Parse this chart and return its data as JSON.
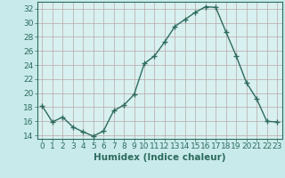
{
  "x": [
    0,
    1,
    2,
    3,
    4,
    5,
    6,
    7,
    8,
    9,
    10,
    11,
    12,
    13,
    14,
    15,
    16,
    17,
    18,
    19,
    20,
    21,
    22,
    23
  ],
  "y": [
    18.2,
    15.9,
    16.6,
    15.2,
    14.5,
    13.9,
    14.6,
    17.5,
    18.3,
    19.8,
    24.2,
    25.3,
    27.3,
    29.5,
    30.5,
    31.5,
    32.3,
    32.2,
    28.7,
    25.3,
    21.5,
    19.2,
    16.0,
    15.9
  ],
  "line_color": "#2e6b5e",
  "marker": "+",
  "marker_size": 4,
  "marker_linewidth": 1.0,
  "line_width": 1.0,
  "bg_color": "#c8eaea",
  "plot_bg_color": "#d8f0f0",
  "grid_color": "#b8a8a8",
  "spine_color": "#2e6b5e",
  "xlabel": "Humidex (Indice chaleur)",
  "xlabel_fontsize": 7.5,
  "tick_fontsize": 6.5,
  "ylim": [
    13.5,
    33
  ],
  "yticks": [
    14,
    16,
    18,
    20,
    22,
    24,
    26,
    28,
    30,
    32
  ],
  "xlim": [
    -0.5,
    23.5
  ],
  "xticks": [
    0,
    1,
    2,
    3,
    4,
    5,
    6,
    7,
    8,
    9,
    10,
    11,
    12,
    13,
    14,
    15,
    16,
    17,
    18,
    19,
    20,
    21,
    22,
    23
  ]
}
